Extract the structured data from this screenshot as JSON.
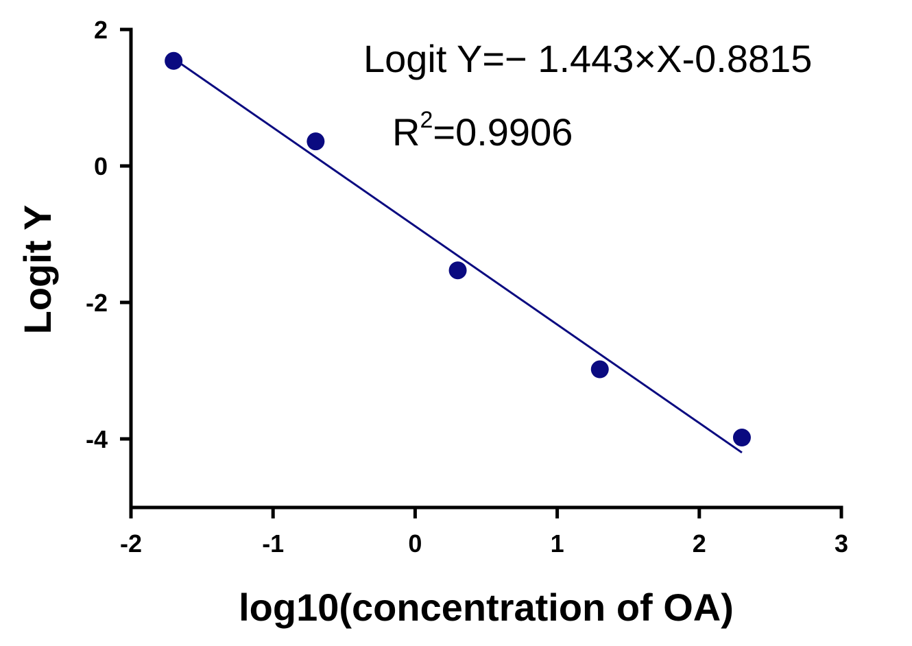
{
  "chart_data": {
    "type": "scatter",
    "xlabel": "log10(concentration of OA)",
    "ylabel": "Logit Y",
    "xlim": [
      -2,
      3
    ],
    "ylim": [
      -5,
      2
    ],
    "x_ticks": [
      -2,
      -1,
      0,
      1,
      2,
      3
    ],
    "y_ticks": [
      2,
      0,
      -2,
      -4
    ],
    "x_tick_labels": [
      "-2",
      "-1",
      "0",
      "1",
      "2",
      "3"
    ],
    "y_tick_labels": [
      "2",
      "0",
      "-2",
      "-4"
    ],
    "grid": false,
    "series": [
      {
        "x": [
          -1.7,
          -0.7,
          0.3,
          1.3,
          2.3
        ],
        "y": [
          1.54,
          0.36,
          -1.53,
          -2.98,
          -3.98
        ],
        "color": "#0a0a80"
      }
    ],
    "fit_line": {
      "slope": -1.443,
      "intercept": -0.8815,
      "x_range": [
        -1.7,
        2.3
      ],
      "color": "#0a0a80"
    },
    "annotations": {
      "equation": "Logit Y=− 1.443×X-0.8815",
      "r2_prefix": "R",
      "r2_sup": "2",
      "r2_value": "=0.9906"
    }
  }
}
